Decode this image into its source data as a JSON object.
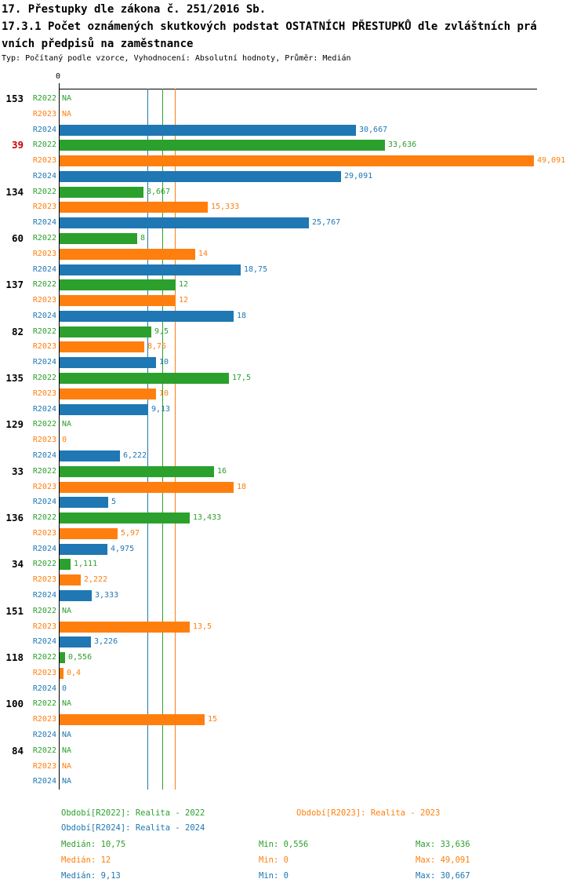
{
  "header": {
    "line1": "17. Přestupky dle zákona č. 251/2016 Sb.",
    "line2": "17.3.1 Počet oznámených skutkových podstat OSTATNÍCH PŘESTUPKŮ dle zvláštních prá",
    "line3": "vních předpisů na zaměstnance",
    "subtitle": "Typ: Počítaný podle vzorce, Vyhodnocení: Absolutní hodnoty, Průměr: Medián"
  },
  "colors": {
    "R2022": "#2ca02c",
    "R2023": "#ff7f0e",
    "R2024": "#1f77b4",
    "highlight": "#cc0000",
    "axis": "#000000"
  },
  "chart_data": {
    "type": "bar",
    "orientation": "horizontal",
    "title": "17.3.1 Počet oznámených skutkových podstat OSTATNÍCH PŘESTUPKŮ dle zvláštních právních předpisů na zaměstnance",
    "x_axis": {
      "min": 0,
      "max": 49.091,
      "tick_labels": [
        "0"
      ]
    },
    "series": [
      "R2022",
      "R2023",
      "R2024"
    ],
    "median_lines": [
      {
        "series": "R2022",
        "value": 10.75
      },
      {
        "series": "R2023",
        "value": 12
      },
      {
        "series": "R2024",
        "value": 9.13
      }
    ],
    "groups": [
      {
        "category": "153",
        "highlight": false,
        "bars": [
          {
            "series": "R2022",
            "value": null,
            "label": "NA"
          },
          {
            "series": "R2023",
            "value": null,
            "label": "NA"
          },
          {
            "series": "R2024",
            "value": 30.667,
            "label": "30,667"
          }
        ]
      },
      {
        "category": "39",
        "highlight": true,
        "bars": [
          {
            "series": "R2022",
            "value": 33.636,
            "label": "33,636"
          },
          {
            "series": "R2023",
            "value": 49.091,
            "label": "49,091"
          },
          {
            "series": "R2024",
            "value": 29.091,
            "label": "29,091"
          }
        ]
      },
      {
        "category": "134",
        "highlight": false,
        "bars": [
          {
            "series": "R2022",
            "value": 8.667,
            "label": "8,667"
          },
          {
            "series": "R2023",
            "value": 15.333,
            "label": "15,333"
          },
          {
            "series": "R2024",
            "value": 25.767,
            "label": "25,767"
          }
        ]
      },
      {
        "category": "60",
        "highlight": false,
        "bars": [
          {
            "series": "R2022",
            "value": 8,
            "label": "8"
          },
          {
            "series": "R2023",
            "value": 14,
            "label": "14"
          },
          {
            "series": "R2024",
            "value": 18.75,
            "label": "18,75"
          }
        ]
      },
      {
        "category": "137",
        "highlight": false,
        "bars": [
          {
            "series": "R2022",
            "value": 12,
            "label": "12"
          },
          {
            "series": "R2023",
            "value": 12,
            "label": "12"
          },
          {
            "series": "R2024",
            "value": 18,
            "label": "18"
          }
        ]
      },
      {
        "category": "82",
        "highlight": false,
        "bars": [
          {
            "series": "R2022",
            "value": 9.5,
            "label": "9,5"
          },
          {
            "series": "R2023",
            "value": 8.75,
            "label": "8,75"
          },
          {
            "series": "R2024",
            "value": 10,
            "label": "10"
          }
        ]
      },
      {
        "category": "135",
        "highlight": false,
        "bars": [
          {
            "series": "R2022",
            "value": 17.5,
            "label": "17,5"
          },
          {
            "series": "R2023",
            "value": 10,
            "label": "10"
          },
          {
            "series": "R2024",
            "value": 9.13,
            "label": "9,13"
          }
        ]
      },
      {
        "category": "129",
        "highlight": false,
        "bars": [
          {
            "series": "R2022",
            "value": null,
            "label": "NA"
          },
          {
            "series": "R2023",
            "value": 0,
            "label": "0"
          },
          {
            "series": "R2024",
            "value": 6.222,
            "label": "6,222"
          }
        ]
      },
      {
        "category": "33",
        "highlight": false,
        "bars": [
          {
            "series": "R2022",
            "value": 16,
            "label": "16"
          },
          {
            "series": "R2023",
            "value": 18,
            "label": "18"
          },
          {
            "series": "R2024",
            "value": 5,
            "label": "5"
          }
        ]
      },
      {
        "category": "136",
        "highlight": false,
        "bars": [
          {
            "series": "R2022",
            "value": 13.433,
            "label": "13,433"
          },
          {
            "series": "R2023",
            "value": 5.97,
            "label": "5,97"
          },
          {
            "series": "R2024",
            "value": 4.975,
            "label": "4,975"
          }
        ]
      },
      {
        "category": "34",
        "highlight": false,
        "bars": [
          {
            "series": "R2022",
            "value": 1.111,
            "label": "1,111"
          },
          {
            "series": "R2023",
            "value": 2.222,
            "label": "2,222"
          },
          {
            "series": "R2024",
            "value": 3.333,
            "label": "3,333"
          }
        ]
      },
      {
        "category": "151",
        "highlight": false,
        "bars": [
          {
            "series": "R2022",
            "value": null,
            "label": "NA"
          },
          {
            "series": "R2023",
            "value": 13.5,
            "label": "13,5"
          },
          {
            "series": "R2024",
            "value": 3.226,
            "label": "3,226"
          }
        ]
      },
      {
        "category": "118",
        "highlight": false,
        "bars": [
          {
            "series": "R2022",
            "value": 0.556,
            "label": "0,556"
          },
          {
            "series": "R2023",
            "value": 0.4,
            "label": "0,4"
          },
          {
            "series": "R2024",
            "value": 0,
            "label": "0"
          }
        ]
      },
      {
        "category": "100",
        "highlight": false,
        "bars": [
          {
            "series": "R2022",
            "value": null,
            "label": "NA"
          },
          {
            "series": "R2023",
            "value": 15,
            "label": "15"
          },
          {
            "series": "R2024",
            "value": null,
            "label": "NA"
          }
        ]
      },
      {
        "category": "84",
        "highlight": false,
        "bars": [
          {
            "series": "R2022",
            "value": null,
            "label": "NA"
          },
          {
            "series": "R2023",
            "value": null,
            "label": "NA"
          },
          {
            "series": "R2024",
            "value": null,
            "label": "NA"
          }
        ]
      }
    ]
  },
  "legend": {
    "items": [
      {
        "series": "R2022",
        "text": "Období[R2022]: Realita - 2022"
      },
      {
        "series": "R2023",
        "text": "Období[R2023]: Realita - 2023"
      },
      {
        "series": "R2024",
        "text": "Období[R2024]: Realita - 2024"
      }
    ]
  },
  "stats": [
    {
      "series": "R2022",
      "median_text": "Medián: 10,75",
      "min_text": "Min: 0,556",
      "max_text": "Max: 33,636",
      "median": 10.75,
      "min": 0.556,
      "max": 33.636
    },
    {
      "series": "R2023",
      "median_text": "Medián: 12",
      "min_text": "Min: 0",
      "max_text": "Max: 49,091",
      "median": 12,
      "min": 0,
      "max": 49.091
    },
    {
      "series": "R2024",
      "median_text": "Medián: 9,13",
      "min_text": "Min: 0",
      "max_text": "Max: 30,667",
      "median": 9.13,
      "min": 0,
      "max": 30.667
    }
  ]
}
